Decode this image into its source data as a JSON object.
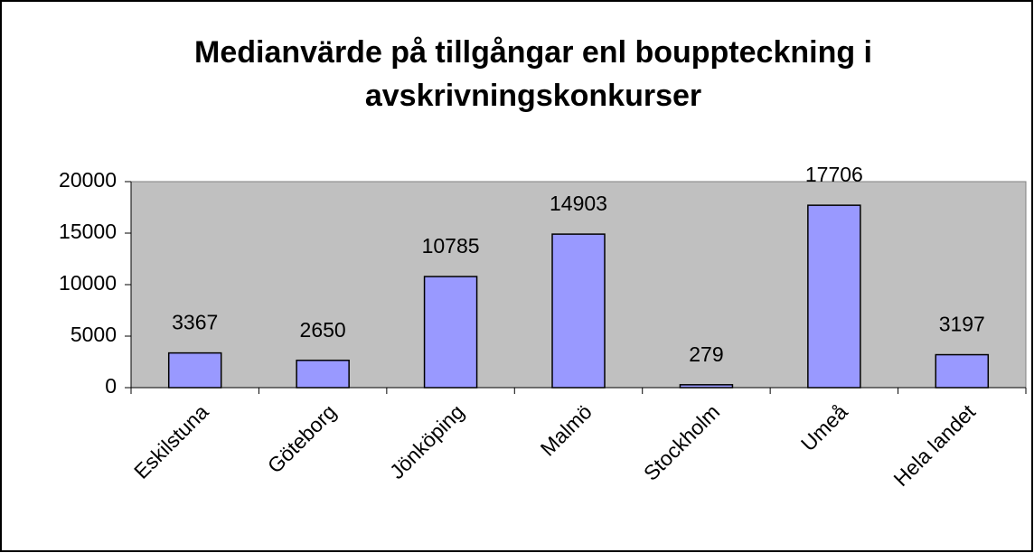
{
  "chart_data": {
    "type": "bar",
    "title": [
      "Medianvärde på tillgångar enl bouppteckning i",
      "avskrivningskonkurser"
    ],
    "categories": [
      "Eskilstuna",
      "Göteborg",
      "Jönköping",
      "Malmö",
      "Stockholm",
      "Umeå",
      "Hela landet"
    ],
    "values": [
      3367,
      2650,
      10785,
      14903,
      279,
      17706,
      3197
    ],
    "color": "#9999ff",
    "ylim": [
      0,
      20000
    ],
    "yticks": [
      0,
      5000,
      10000,
      15000,
      20000
    ],
    "grid": false
  }
}
